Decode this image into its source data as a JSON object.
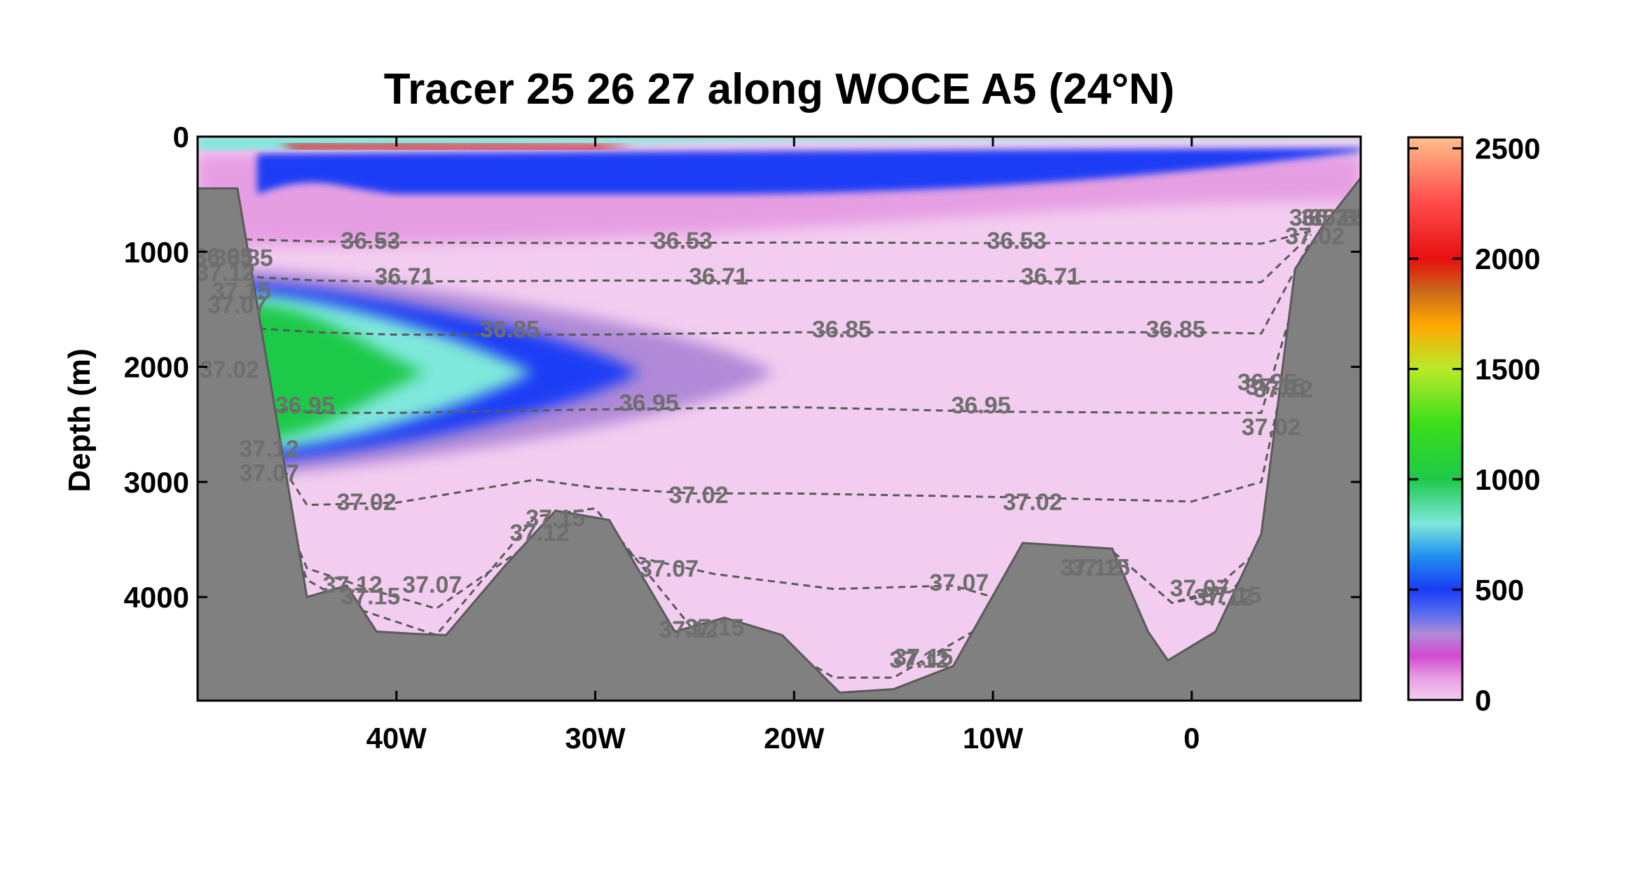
{
  "chart_data": {
    "type": "heatmap",
    "title": "Tracer 25 26 27 along WOCE A5 (24°N)",
    "xlabel": "",
    "ylabel": "Depth (m)",
    "xlim": [
      -50,
      8.5
    ],
    "ylim": [
      4900,
      0
    ],
    "x_ticks": [
      {
        "value": -40,
        "label": "40W"
      },
      {
        "value": -30,
        "label": "30W"
      },
      {
        "value": -20,
        "label": "20W"
      },
      {
        "value": -10,
        "label": "10W"
      },
      {
        "value": 0,
        "label": "0"
      }
    ],
    "y_ticks": [
      {
        "value": 0,
        "label": "0"
      },
      {
        "value": 1000,
        "label": "1000"
      },
      {
        "value": 2000,
        "label": "2000"
      },
      {
        "value": 3000,
        "label": "3000"
      },
      {
        "value": 4000,
        "label": "4000"
      }
    ],
    "colorbar": {
      "range": [
        0,
        2550
      ],
      "ticks": [
        {
          "value": 0,
          "label": "0"
        },
        {
          "value": 500,
          "label": "500"
        },
        {
          "value": 1000,
          "label": "1000"
        },
        {
          "value": 1500,
          "label": "1500"
        },
        {
          "value": 2000,
          "label": "2000"
        },
        {
          "value": 2500,
          "label": "2500"
        }
      ],
      "colors": [
        {
          "value": 0,
          "color": "#f3cdf0"
        },
        {
          "value": 100,
          "color": "#e69ee3"
        },
        {
          "value": 200,
          "color": "#d24bd2"
        },
        {
          "value": 300,
          "color": "#b08ad8"
        },
        {
          "value": 400,
          "color": "#4f6af0"
        },
        {
          "value": 500,
          "color": "#1a3cf5"
        },
        {
          "value": 650,
          "color": "#1f8ff0"
        },
        {
          "value": 800,
          "color": "#7fe8dc"
        },
        {
          "value": 1000,
          "color": "#1ec94a"
        },
        {
          "value": 1250,
          "color": "#3ade1a"
        },
        {
          "value": 1500,
          "color": "#b9ea2a"
        },
        {
          "value": 1700,
          "color": "#ffa800"
        },
        {
          "value": 1850,
          "color": "#c96a1a"
        },
        {
          "value": 2000,
          "color": "#e61010"
        },
        {
          "value": 2250,
          "color": "#ff4a4a"
        },
        {
          "value": 2550,
          "color": "#ffbf8a"
        }
      ]
    },
    "tracer_field": {
      "description_values": "approximate tracer concentration bands",
      "bands": [
        {
          "value": 120,
          "depth_top_west": 150,
          "depth_top_east": 150,
          "depth_bottom_west": 950,
          "depth_bottom_east": 560
        },
        {
          "value": 520,
          "depth_top_west": 150,
          "depth_top_east": 100,
          "depth_bottom_west": 500,
          "depth_bottom_east": 130
        },
        {
          "value": 900,
          "depth_top_west": 0,
          "depth_top_east": 0,
          "depth_bottom_west": 120,
          "depth_bottom_east": 20
        },
        {
          "value": 1000,
          "depth_top_west": 1300,
          "depth_top_east": 1300,
          "depth_bottom_west": 2800,
          "depth_bottom_east": 2800
        }
      ]
    },
    "contours": [
      {
        "level": "36.53",
        "x": [
          -48.2,
          -44,
          -40,
          -30,
          -20,
          -10,
          0,
          3.5,
          6
        ],
        "y": [
          890,
          910,
          920,
          925,
          920,
          925,
          925,
          930,
          820
        ]
      },
      {
        "level": "36.71",
        "x": [
          -48.2,
          -44,
          -40,
          -30,
          -20,
          -10,
          0,
          3.5,
          6
        ],
        "y": [
          1210,
          1250,
          1260,
          1250,
          1250,
          1255,
          1265,
          1265,
          850
        ]
      },
      {
        "level": "36.85",
        "x": [
          -47.5,
          -44,
          -40,
          -30,
          -20,
          -10,
          0,
          3.5,
          6
        ],
        "y": [
          1660,
          1700,
          1720,
          1720,
          1700,
          1700,
          1700,
          1710,
          900
        ]
      },
      {
        "level": "36.95",
        "x": [
          -47,
          -44,
          -40,
          -30,
          -20,
          -10,
          0,
          3.5,
          6
        ],
        "y": [
          2350,
          2400,
          2400,
          2370,
          2350,
          2390,
          2400,
          2400,
          950
        ]
      },
      {
        "level": "37.02",
        "x": [
          -46,
          -44.5,
          -40,
          -33,
          -30,
          -25,
          -20,
          -10,
          0,
          3.5,
          6
        ],
        "y": [
          2800,
          3200,
          3180,
          2980,
          3050,
          3100,
          3100,
          3130,
          3170,
          3000,
          1000
        ]
      },
      {
        "level": "37.07",
        "x": [
          -47,
          -44.5,
          -41,
          -38,
          -33,
          -31,
          -28,
          -24,
          -18,
          -12,
          -10,
          -4,
          -1,
          2,
          5
        ],
        "y": [
          2750,
          3750,
          3950,
          4100,
          3500,
          3330,
          3650,
          3800,
          3930,
          3900,
          4000,
          3600,
          4050,
          3950,
          3300
        ]
      },
      {
        "level": "37.12",
        "x": [
          -46.5,
          -44.5,
          -42,
          -38,
          -33,
          -30,
          -25,
          -22,
          -18,
          -15,
          -10,
          -8,
          -3,
          -1,
          1,
          3
        ],
        "y": [
          2900,
          3850,
          4100,
          4330,
          3300,
          3230,
          4300,
          4290,
          4700,
          4700,
          4200,
          3550,
          3750,
          4050,
          3950,
          3650
        ]
      }
    ],
    "contour_labels": [
      {
        "text": "36.53",
        "x": -41.3,
        "y": 900
      },
      {
        "text": "36.53",
        "x": -25.6,
        "y": 900
      },
      {
        "text": "36.53",
        "x": -8.8,
        "y": 900
      },
      {
        "text": "36.71",
        "x": -39.6,
        "y": 1210
      },
      {
        "text": "36.71",
        "x": -23.8,
        "y": 1210
      },
      {
        "text": "36.71",
        "x": -7.1,
        "y": 1210
      },
      {
        "text": "36.85",
        "x": -34.3,
        "y": 1670
      },
      {
        "text": "36.85",
        "x": -17.6,
        "y": 1670
      },
      {
        "text": "36.85",
        "x": -0.8,
        "y": 1670
      },
      {
        "text": "36.95",
        "x": -44.6,
        "y": 2330
      },
      {
        "text": "36.95",
        "x": -27.3,
        "y": 2310
      },
      {
        "text": "36.95",
        "x": -10.6,
        "y": 2330
      },
      {
        "text": "36.95",
        "x": 3.8,
        "y": 2130
      },
      {
        "text": "37.02",
        "x": -48.4,
        "y": 2020
      },
      {
        "text": "37.02",
        "x": -41.5,
        "y": 3170
      },
      {
        "text": "37.02",
        "x": -24.8,
        "y": 3110
      },
      {
        "text": "37.02",
        "x": -8.0,
        "y": 3170
      },
      {
        "text": "37.02",
        "x": 4.0,
        "y": 2520
      },
      {
        "text": "37.02",
        "x": 6.2,
        "y": 860
      },
      {
        "text": "37.12",
        "x": -46.4,
        "y": 2710
      },
      {
        "text": "37.07",
        "x": -46.4,
        "y": 2920
      },
      {
        "text": "37.12",
        "x": -32.8,
        "y": 3440
      },
      {
        "text": "37.15",
        "x": -32.0,
        "y": 3310
      },
      {
        "text": "37.07",
        "x": -26.3,
        "y": 3750
      },
      {
        "text": "37.12",
        "x": -42.2,
        "y": 3890
      },
      {
        "text": "37.15",
        "x": -41.3,
        "y": 3990
      },
      {
        "text": "37.07",
        "x": -38.2,
        "y": 3890
      },
      {
        "text": "37.12",
        "x": -25.3,
        "y": 4280
      },
      {
        "text": "37.15",
        "x": -24.0,
        "y": 4260
      },
      {
        "text": "37.07",
        "x": -11.7,
        "y": 3870
      },
      {
        "text": "37.12",
        "x": -13.7,
        "y": 4540
      },
      {
        "text": "37.15",
        "x": -13.5,
        "y": 4520
      },
      {
        "text": "37.12",
        "x": -5.1,
        "y": 3740
      },
      {
        "text": "37.15",
        "x": -4.6,
        "y": 3740
      },
      {
        "text": "37.07",
        "x": 0.4,
        "y": 3920
      },
      {
        "text": "37.12",
        "x": 1.6,
        "y": 4000
      },
      {
        "text": "37.15",
        "x": 2.0,
        "y": 3980
      },
      {
        "text": "37.12",
        "x": 4.6,
        "y": 2190
      },
      {
        "text": "37.15",
        "x": 4.2,
        "y": 2170
      },
      {
        "text": "36.53",
        "x": 6.4,
        "y": 700
      },
      {
        "text": "36.71",
        "x": 7.0,
        "y": 700
      },
      {
        "text": "36.85",
        "x": 7.4,
        "y": 700
      },
      {
        "text": "36.95",
        "x": -48.7,
        "y": 1040
      },
      {
        "text": "36.85",
        "x": -47.7,
        "y": 1050
      },
      {
        "text": "37.07",
        "x": -48.0,
        "y": 1460
      },
      {
        "text": "37.12",
        "x": -48.6,
        "y": 1180
      },
      {
        "text": "37.15",
        "x": -47.8,
        "y": 1340
      }
    ],
    "bathymetry": {
      "x": [
        -50,
        -50,
        -48,
        -44.5,
        -42.5,
        -41,
        -39,
        -37.5,
        -34.5,
        -32,
        -29.3,
        -26,
        -23.5,
        -20.6,
        -17.7,
        -15,
        -12,
        -8.5,
        -4,
        -2.2,
        -1.2,
        1.2,
        3.5,
        5.2,
        6.5,
        8.5,
        8.5
      ],
      "y": [
        4900,
        450,
        450,
        4000,
        3900,
        4300,
        4320,
        4330,
        3720,
        3250,
        3330,
        4300,
        4180,
        4330,
        4830,
        4800,
        4600,
        3530,
        3580,
        4300,
        4550,
        4300,
        3450,
        1150,
        800,
        360,
        4900
      ]
    }
  }
}
